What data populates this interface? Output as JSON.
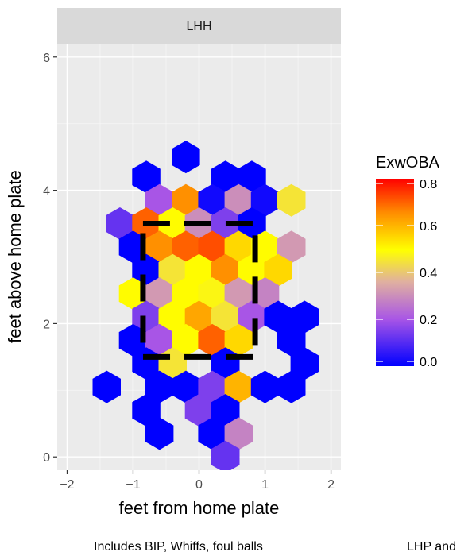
{
  "chart_data": {
    "type": "heatmap",
    "subtype": "hexbin",
    "facet_label": "LHH",
    "xlabel": "feet from home plate",
    "ylabel": "feet above home plate",
    "xlim": [
      -2.15,
      2.15
    ],
    "ylim": [
      -0.2,
      6.2
    ],
    "x_ticks": [
      -2,
      -1,
      0,
      1,
      2
    ],
    "x_tick_labels": [
      "−2",
      "−1",
      "0",
      "1",
      "2"
    ],
    "y_ticks": [
      0,
      2,
      4,
      6
    ],
    "y_tick_labels": [
      "0",
      "2",
      "4",
      "6"
    ],
    "grid": true,
    "legend": {
      "title": "ExwOBA",
      "position": "right",
      "range": [
        0,
        0.8
      ],
      "breaks": [
        0.0,
        0.2,
        0.4,
        0.6,
        0.8
      ],
      "break_labels": [
        "0.0",
        "0.2",
        "0.4",
        "0.6",
        "0.8"
      ],
      "colors": [
        "#0000ff",
        "#a855e6",
        "#e0b0a0",
        "#ffff00",
        "#ff8c00",
        "#ff0000"
      ]
    },
    "caption_left": "Includes BIP, Whiffs, foul balls",
    "caption_right": "LHP and",
    "strike_zone": {
      "x": [
        -0.85,
        0.85
      ],
      "y": [
        1.5,
        3.5
      ]
    },
    "hexes": [
      {
        "x": -0.2,
        "y": 4.5,
        "v": 0.0
      },
      {
        "x": -0.8,
        "y": 4.2,
        "v": 0.0
      },
      {
        "x": 0.4,
        "y": 4.2,
        "v": 0.0
      },
      {
        "x": 0.8,
        "y": 4.2,
        "v": 0.0
      },
      {
        "x": -0.6,
        "y": 3.85,
        "v": 0.2
      },
      {
        "x": -0.2,
        "y": 3.85,
        "v": 0.65
      },
      {
        "x": 0.2,
        "y": 3.85,
        "v": 0.02
      },
      {
        "x": 0.6,
        "y": 3.85,
        "v": 0.3
      },
      {
        "x": 1.0,
        "y": 3.85,
        "v": 0.02
      },
      {
        "x": 1.4,
        "y": 3.85,
        "v": 0.45
      },
      {
        "x": -1.2,
        "y": 3.5,
        "v": 0.12
      },
      {
        "x": -0.8,
        "y": 3.5,
        "v": 0.7
      },
      {
        "x": -0.4,
        "y": 3.5,
        "v": 0.5
      },
      {
        "x": 0.0,
        "y": 3.5,
        "v": 0.3
      },
      {
        "x": 0.4,
        "y": 3.5,
        "v": 0.15
      },
      {
        "x": 0.8,
        "y": 3.5,
        "v": 0.0
      },
      {
        "x": -1.0,
        "y": 3.15,
        "v": 0.0
      },
      {
        "x": -0.6,
        "y": 3.15,
        "v": 0.65
      },
      {
        "x": -0.2,
        "y": 3.15,
        "v": 0.7
      },
      {
        "x": 0.2,
        "y": 3.15,
        "v": 0.72
      },
      {
        "x": 0.6,
        "y": 3.15,
        "v": 0.55
      },
      {
        "x": 1.0,
        "y": 3.15,
        "v": 0.5
      },
      {
        "x": 1.4,
        "y": 3.15,
        "v": 0.32
      },
      {
        "x": -0.8,
        "y": 2.8,
        "v": 0.0
      },
      {
        "x": -0.4,
        "y": 2.8,
        "v": 0.45
      },
      {
        "x": 0.0,
        "y": 2.8,
        "v": 0.5
      },
      {
        "x": 0.4,
        "y": 2.8,
        "v": 0.65
      },
      {
        "x": 0.8,
        "y": 2.8,
        "v": 0.5
      },
      {
        "x": 1.2,
        "y": 2.8,
        "v": 0.55
      },
      {
        "x": -1.0,
        "y": 2.45,
        "v": 0.5
      },
      {
        "x": -0.6,
        "y": 2.45,
        "v": 0.32
      },
      {
        "x": -0.2,
        "y": 2.45,
        "v": 0.5
      },
      {
        "x": 0.2,
        "y": 2.45,
        "v": 0.48
      },
      {
        "x": 0.6,
        "y": 2.45,
        "v": 0.32
      },
      {
        "x": 1.0,
        "y": 2.45,
        "v": 0.28
      },
      {
        "x": -0.8,
        "y": 2.1,
        "v": 0.15
      },
      {
        "x": -0.4,
        "y": 2.1,
        "v": 0.5
      },
      {
        "x": 0.0,
        "y": 2.1,
        "v": 0.62
      },
      {
        "x": 0.4,
        "y": 2.1,
        "v": 0.45
      },
      {
        "x": 0.8,
        "y": 2.1,
        "v": 0.2
      },
      {
        "x": 1.2,
        "y": 2.1,
        "v": 0.0
      },
      {
        "x": 1.6,
        "y": 2.1,
        "v": 0.0
      },
      {
        "x": -1.0,
        "y": 1.75,
        "v": 0.0
      },
      {
        "x": -0.6,
        "y": 1.75,
        "v": 0.2
      },
      {
        "x": -0.2,
        "y": 1.75,
        "v": 0.5
      },
      {
        "x": 0.2,
        "y": 1.75,
        "v": 0.7
      },
      {
        "x": 0.6,
        "y": 1.75,
        "v": 0.55
      },
      {
        "x": 1.4,
        "y": 1.75,
        "v": 0.0
      },
      {
        "x": -0.8,
        "y": 1.4,
        "v": 0.0
      },
      {
        "x": -0.4,
        "y": 1.4,
        "v": 0.45
      },
      {
        "x": 0.4,
        "y": 1.4,
        "v": 0.0
      },
      {
        "x": 1.6,
        "y": 1.4,
        "v": 0.0
      },
      {
        "x": -1.4,
        "y": 1.05,
        "v": 0.0
      },
      {
        "x": -0.6,
        "y": 1.05,
        "v": 0.0
      },
      {
        "x": -0.2,
        "y": 1.05,
        "v": 0.0
      },
      {
        "x": 0.2,
        "y": 1.05,
        "v": 0.15
      },
      {
        "x": 0.6,
        "y": 1.05,
        "v": 0.6
      },
      {
        "x": 1.0,
        "y": 1.05,
        "v": 0.0
      },
      {
        "x": 1.4,
        "y": 1.05,
        "v": 0.0
      },
      {
        "x": -0.8,
        "y": 0.7,
        "v": 0.0
      },
      {
        "x": 0.0,
        "y": 0.7,
        "v": 0.15
      },
      {
        "x": 0.4,
        "y": 0.7,
        "v": 0.0
      },
      {
        "x": -0.6,
        "y": 0.35,
        "v": 0.0
      },
      {
        "x": 0.2,
        "y": 0.35,
        "v": 0.0
      },
      {
        "x": 0.6,
        "y": 0.35,
        "v": 0.28
      },
      {
        "x": 0.4,
        "y": 0.0,
        "v": 0.12
      }
    ]
  }
}
